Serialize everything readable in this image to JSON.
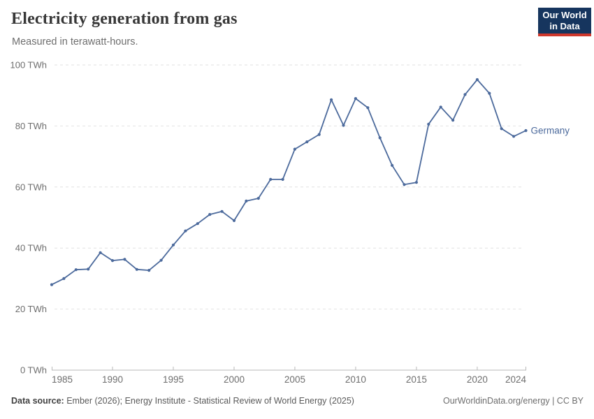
{
  "header": {
    "title": "Electricity generation from gas",
    "subtitle": "Measured in terawatt-hours.",
    "logo": {
      "line1": "Our World",
      "line2": "in Data"
    }
  },
  "chart_data": {
    "type": "line",
    "title": "Electricity generation from gas",
    "ylabel": "",
    "xlabel": "",
    "unit": "TWh",
    "grid": "horizontal dashed",
    "legend_position": "end-of-line",
    "xlim": [
      1985,
      2024
    ],
    "ylim": [
      0,
      100
    ],
    "line_color": "#4c6a9c",
    "axis_color": "#b8b8b8",
    "grid_color": "#e2e2e2",
    "x": [
      1985,
      1986,
      1987,
      1988,
      1989,
      1990,
      1991,
      1992,
      1993,
      1994,
      1995,
      1996,
      1997,
      1998,
      1999,
      2000,
      2001,
      2002,
      2003,
      2004,
      2005,
      2006,
      2007,
      2008,
      2009,
      2010,
      2011,
      2012,
      2013,
      2014,
      2015,
      2016,
      2017,
      2018,
      2019,
      2020,
      2021,
      2022,
      2023,
      2024
    ],
    "series": [
      {
        "name": "Germany",
        "color": "#4c6a9c",
        "values": [
          28.0,
          30.0,
          32.9,
          33.1,
          38.5,
          35.9,
          36.3,
          33.0,
          32.7,
          36.0,
          41.0,
          45.6,
          48.0,
          51.0,
          52.0,
          49.0,
          55.4,
          56.3,
          62.5,
          62.5,
          72.4,
          74.8,
          77.2,
          88.6,
          80.2,
          89.0,
          86.0,
          76.1,
          67.1,
          60.8,
          61.5,
          80.6,
          86.2,
          81.9,
          90.3,
          95.2,
          90.7,
          79.1,
          76.6,
          78.5
        ]
      }
    ],
    "y_ticks": [
      {
        "value": 0,
        "label": "0 TWh"
      },
      {
        "value": 20,
        "label": "20 TWh"
      },
      {
        "value": 40,
        "label": "40 TWh"
      },
      {
        "value": 60,
        "label": "60 TWh"
      },
      {
        "value": 80,
        "label": "80 TWh"
      },
      {
        "value": 100,
        "label": "100 TWh"
      }
    ],
    "x_ticks": [
      {
        "value": 1985,
        "label": "1985",
        "anchor": "start",
        "tick": false
      },
      {
        "value": 1990,
        "label": "1990",
        "anchor": "middle",
        "tick": true
      },
      {
        "value": 1995,
        "label": "1995",
        "anchor": "middle",
        "tick": true
      },
      {
        "value": 2000,
        "label": "2000",
        "anchor": "middle",
        "tick": true
      },
      {
        "value": 2005,
        "label": "2005",
        "anchor": "middle",
        "tick": true
      },
      {
        "value": 2010,
        "label": "2010",
        "anchor": "middle",
        "tick": true
      },
      {
        "value": 2015,
        "label": "2015",
        "anchor": "middle",
        "tick": true
      },
      {
        "value": 2020,
        "label": "2020",
        "anchor": "middle",
        "tick": true
      },
      {
        "value": 2024,
        "label": "2024",
        "anchor": "end",
        "tick": true
      }
    ]
  },
  "footer": {
    "source_label": "Data source:",
    "source_text": " Ember (2026); Energy Institute - Statistical Review of World Energy (2025)",
    "link": "OurWorldinData.org/energy",
    "license_suffix": " | CC BY"
  }
}
